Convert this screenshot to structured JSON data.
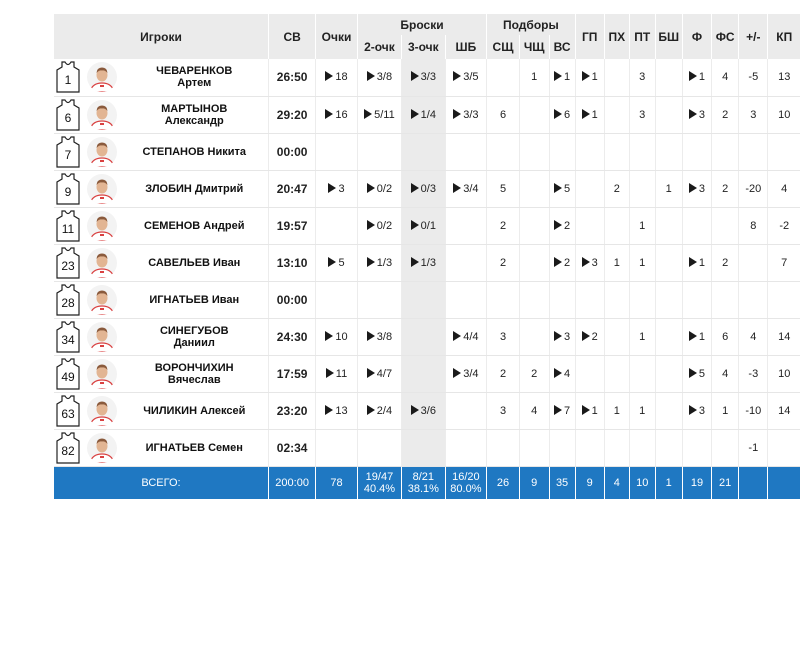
{
  "headers": {
    "players": "Игроки",
    "minutes": "СВ",
    "points": "Очки",
    "shots": "Броски",
    "two_pt": "2-очк",
    "three_pt": "3-очк",
    "free_throws": "ШБ",
    "rebounds": "Подборы",
    "off_reb": "СЩ",
    "def_reb": "ЧЩ",
    "tot_reb": "ВС",
    "assists": "ГП",
    "steals": "ПХ",
    "turnovers": "ПТ",
    "blocks": "БШ",
    "fouls": "Ф",
    "fouls_drawn": "ФС",
    "plus_minus": "+/-",
    "efficiency": "КП"
  },
  "players": [
    {
      "number": "1",
      "last": "ЧЕВАРЕНКОВ",
      "first": "Артем",
      "min": "26:50",
      "pts": "18",
      "p2": "3/8",
      "p3": "3/3",
      "ft": "3/5",
      "oreb": "",
      "dreb": "1",
      "treb": "1",
      "ast": "1",
      "stl": "",
      "to": "3",
      "blk": "",
      "pf": "1",
      "fd": "4",
      "pm": "-5",
      "eff": "13"
    },
    {
      "number": "6",
      "last": "МАРТЫНОВ",
      "first": "Александр",
      "min": "29:20",
      "pts": "16",
      "p2": "5/11",
      "p3": "1/4",
      "ft": "3/3",
      "oreb": "6",
      "dreb": "",
      "treb": "6",
      "ast": "1",
      "stl": "",
      "to": "3",
      "blk": "",
      "pf": "3",
      "fd": "2",
      "pm": "3",
      "eff": "10"
    },
    {
      "number": "7",
      "last": "СТЕПАНОВ Никита",
      "first": "",
      "min": "00:00",
      "pts": "",
      "p2": "",
      "p3": "",
      "ft": "",
      "oreb": "",
      "dreb": "",
      "treb": "",
      "ast": "",
      "stl": "",
      "to": "",
      "blk": "",
      "pf": "",
      "fd": "",
      "pm": "",
      "eff": ""
    },
    {
      "number": "9",
      "last": "ЗЛОБИН Дмитрий",
      "first": "",
      "min": "20:47",
      "pts": "3",
      "p2": "0/2",
      "p3": "0/3",
      "ft": "3/4",
      "oreb": "5",
      "dreb": "",
      "treb": "5",
      "ast": "",
      "stl": "2",
      "to": "",
      "blk": "1",
      "pf": "3",
      "fd": "2",
      "pm": "-20",
      "eff": "4"
    },
    {
      "number": "11",
      "last": "СЕМЕНОВ Андрей",
      "first": "",
      "min": "19:57",
      "pts": "",
      "p2": "0/2",
      "p3": "0/1",
      "ft": "",
      "oreb": "2",
      "dreb": "",
      "treb": "2",
      "ast": "",
      "stl": "",
      "to": "1",
      "blk": "",
      "pf": "",
      "fd": "",
      "pm": "8",
      "eff": "-2"
    },
    {
      "number": "23",
      "last": "САВЕЛЬЕВ Иван",
      "first": "",
      "min": "13:10",
      "pts": "5",
      "p2": "1/3",
      "p3": "1/3",
      "ft": "",
      "oreb": "2",
      "dreb": "",
      "treb": "2",
      "ast": "3",
      "stl": "1",
      "to": "1",
      "blk": "",
      "pf": "1",
      "fd": "2",
      "pm": "",
      "eff": "7"
    },
    {
      "number": "28",
      "last": "ИГНАТЬЕВ Иван",
      "first": "",
      "min": "00:00",
      "pts": "",
      "p2": "",
      "p3": "",
      "ft": "",
      "oreb": "",
      "dreb": "",
      "treb": "",
      "ast": "",
      "stl": "",
      "to": "",
      "blk": "",
      "pf": "",
      "fd": "",
      "pm": "",
      "eff": ""
    },
    {
      "number": "34",
      "last": "СИНЕГУБОВ",
      "first": "Даниил",
      "min": "24:30",
      "pts": "10",
      "p2": "3/8",
      "p3": "",
      "ft": "4/4",
      "oreb": "3",
      "dreb": "",
      "treb": "3",
      "ast": "2",
      "stl": "",
      "to": "1",
      "blk": "",
      "pf": "1",
      "fd": "6",
      "pm": "4",
      "eff": "14"
    },
    {
      "number": "49",
      "last": "ВОРОНЧИХИН",
      "first": "Вячеслав",
      "min": "17:59",
      "pts": "11",
      "p2": "4/7",
      "p3": "",
      "ft": "3/4",
      "oreb": "2",
      "dreb": "2",
      "treb": "4",
      "ast": "",
      "stl": "",
      "to": "",
      "blk": "",
      "pf": "5",
      "fd": "4",
      "pm": "-3",
      "eff": "10"
    },
    {
      "number": "63",
      "last": "ЧИЛИКИН Алексей",
      "first": "",
      "min": "23:20",
      "pts": "13",
      "p2": "2/4",
      "p3": "3/6",
      "ft": "",
      "oreb": "3",
      "dreb": "4",
      "treb": "7",
      "ast": "1",
      "stl": "1",
      "to": "1",
      "blk": "",
      "pf": "3",
      "fd": "1",
      "pm": "-10",
      "eff": "14"
    },
    {
      "number": "82",
      "last": "ИГНАТЬЕВ Семен",
      "first": "",
      "min": "02:34",
      "pts": "",
      "p2": "",
      "p3": "",
      "ft": "",
      "oreb": "",
      "dreb": "",
      "treb": "",
      "ast": "",
      "stl": "",
      "to": "",
      "blk": "",
      "pf": "",
      "fd": "",
      "pm": "-1",
      "eff": ""
    }
  ],
  "totals": {
    "label": "ВСЕГО:",
    "min": "200:00",
    "pts": "78",
    "p2": "19/47",
    "p2_pct": "40.4%",
    "p3": "8/21",
    "p3_pct": "38.1%",
    "ft": "16/20",
    "ft_pct": "80.0%",
    "oreb": "26",
    "dreb": "9",
    "treb": "35",
    "ast": "9",
    "stl": "4",
    "to": "10",
    "blk": "1",
    "pf": "19",
    "fd": "21",
    "pm": "",
    "eff": ""
  },
  "colors": {
    "header_bg": "#ebebeb",
    "totals_bg": "#1f78c2",
    "highlight_col": "#ebebeb"
  },
  "icons": {
    "jersey": "jersey-icon",
    "avatar": "player-avatar",
    "play_marker": "play-triangle-icon"
  }
}
